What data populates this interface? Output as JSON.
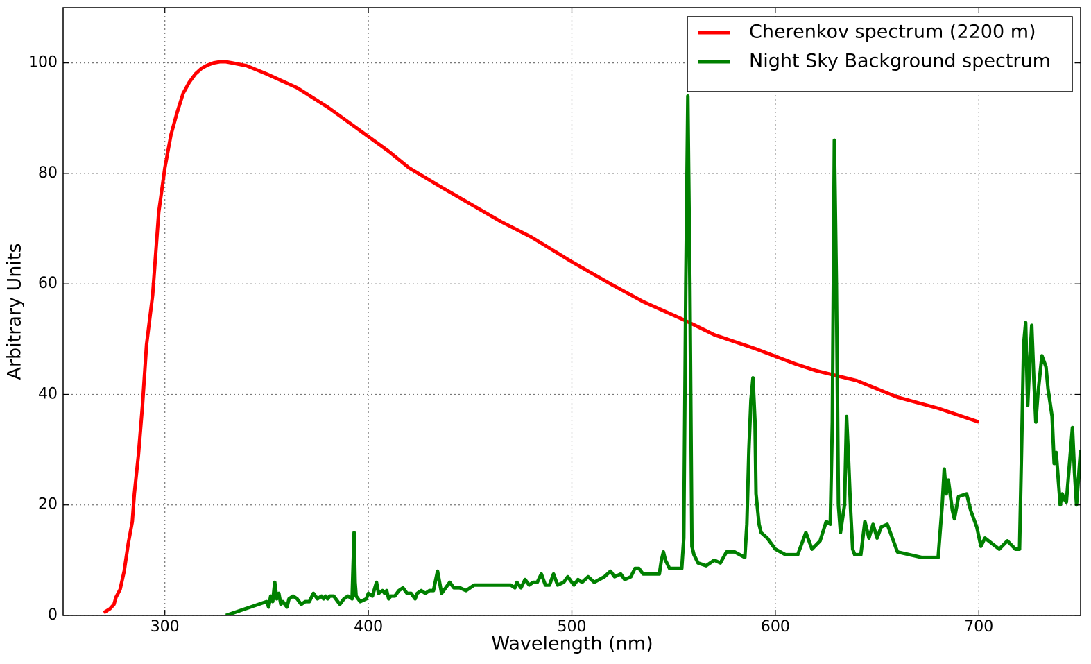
{
  "chart_data": {
    "type": "line",
    "x_label": "Wavelength (nm)",
    "y_label": "Arbitrary Units",
    "xlim": [
      250,
      750
    ],
    "ylim": [
      0,
      110
    ],
    "xticks": [
      300,
      400,
      500,
      600,
      700
    ],
    "yticks": [
      0,
      20,
      40,
      60,
      80,
      100
    ],
    "grid": true,
    "legend": "upper right",
    "series": [
      {
        "name": "Cherenkov spectrum (2200 m)",
        "color": "#ff0000",
        "x": [
          270,
          273,
          275,
          276,
          278,
          280,
          282,
          284,
          285,
          287,
          289,
          291,
          294,
          297,
          300,
          303,
          306,
          309,
          312,
          315,
          318,
          321,
          324,
          327,
          330,
          333,
          340,
          350,
          365,
          380,
          395,
          410,
          420,
          435,
          450,
          465,
          480,
          500,
          520,
          535,
          555,
          570,
          590,
          610,
          620,
          640,
          660,
          680,
          700
        ],
        "values": [
          0.5,
          1.2,
          2,
          3.3,
          4.7,
          8,
          13,
          17,
          22,
          29,
          38,
          49,
          58,
          73,
          81,
          87,
          91,
          94.5,
          96.5,
          98,
          99,
          99.6,
          100,
          100.2,
          100.2,
          100,
          99.5,
          98,
          95.5,
          92,
          88,
          84,
          81,
          77.7,
          74.5,
          71.3,
          68.5,
          64,
          59.8,
          56.8,
          53.5,
          50.8,
          48.3,
          45.5,
          44.3,
          42.5,
          39.5,
          37.5,
          35
        ]
      },
      {
        "name": "Night Sky Background spectrum",
        "color": "#008000",
        "x": [
          330,
          350,
          351,
          352,
          353,
          354,
          355,
          356,
          357,
          358,
          360,
          361,
          363,
          365,
          367,
          369,
          371,
          373,
          375,
          377,
          378,
          379,
          380,
          381,
          383,
          385,
          386,
          388,
          390,
          392,
          393,
          393.5,
          394,
          396,
          399,
          400,
          402,
          404,
          405,
          407,
          408,
          409,
          410,
          411,
          413,
          415,
          417,
          419,
          421,
          423,
          424,
          426,
          428,
          430,
          432,
          434,
          436,
          438,
          440,
          442,
          445,
          448,
          452,
          470,
          472,
          473,
          475,
          477,
          479,
          481,
          483,
          485,
          487,
          489,
          491,
          493,
          496,
          498,
          501,
          503,
          505,
          508,
          511,
          516,
          519,
          521,
          524,
          526,
          529,
          531,
          533,
          535,
          541,
          543,
          544,
          545,
          546,
          548,
          554,
          555,
          556,
          557,
          558,
          559,
          560,
          562,
          566,
          570,
          573,
          576,
          580,
          585,
          586,
          587,
          588,
          589,
          590,
          590.5,
          592,
          593,
          596,
          600,
          605,
          611,
          615,
          618,
          622,
          625,
          627,
          628,
          629,
          630,
          631,
          632,
          634,
          635,
          636,
          637,
          638,
          639,
          642,
          644,
          646,
          648,
          650,
          652,
          655,
          660,
          672,
          680,
          682,
          683,
          684,
          685,
          687,
          688,
          690,
          694,
          696,
          699,
          701,
          703,
          710,
          714,
          718,
          720,
          721,
          722,
          723,
          724,
          725,
          726,
          727,
          728,
          729,
          731,
          733,
          734,
          736,
          737,
          738,
          740,
          741,
          742,
          743,
          746,
          747,
          748,
          749,
          750
        ],
        "values": [
          0,
          2.5,
          1.5,
          3.5,
          2.5,
          6,
          3,
          4,
          2,
          2.5,
          1.5,
          3,
          3.5,
          3,
          2,
          2.5,
          2.5,
          4,
          3,
          3.5,
          3,
          3.5,
          3,
          3.5,
          3.5,
          2.5,
          2,
          3,
          3.5,
          3,
          15,
          6,
          3.5,
          2.5,
          3,
          4,
          3.5,
          6,
          4,
          4.5,
          4,
          4.5,
          3,
          3.5,
          3.5,
          4.5,
          5,
          4,
          4,
          3,
          4,
          4.5,
          4,
          4.5,
          4.5,
          8,
          4,
          5,
          6,
          5,
          5,
          4.5,
          5.5,
          5.5,
          5,
          6,
          5,
          6.5,
          5.5,
          6,
          6,
          7.5,
          5.5,
          5.5,
          7.5,
          5.5,
          6,
          7,
          5.5,
          6.5,
          6,
          7,
          6,
          7,
          8,
          7,
          7.5,
          6.5,
          7,
          8.5,
          8.5,
          7.5,
          7.5,
          7.5,
          10,
          11.5,
          10,
          8.5,
          8.5,
          14,
          60,
          94,
          60,
          12.5,
          11,
          9.5,
          9,
          10,
          9.5,
          11.5,
          11.5,
          10.5,
          16.5,
          30,
          39,
          43,
          35,
          22,
          16.5,
          15,
          14,
          12,
          11,
          11,
          15,
          12,
          13.5,
          17,
          16.5,
          35,
          86,
          60,
          20,
          15,
          20,
          36,
          28,
          19,
          12,
          11,
          11,
          17,
          14,
          16.5,
          14,
          16,
          16.5,
          11.5,
          10.5,
          10.5,
          20,
          26.5,
          22,
          24.5,
          19,
          17.5,
          21.5,
          22,
          19,
          16,
          12.5,
          14,
          12,
          13.5,
          12,
          12,
          30,
          49,
          53,
          38,
          46,
          52.5,
          43,
          35,
          40,
          47,
          45,
          41,
          36,
          27.5,
          29.5,
          20,
          22,
          21,
          20.5,
          34,
          26,
          20,
          25,
          30
        ]
      }
    ]
  }
}
